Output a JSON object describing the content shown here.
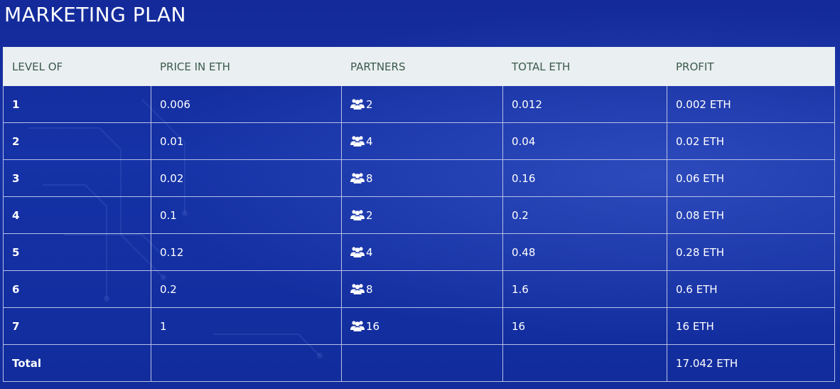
{
  "page": {
    "title": "MARKETING PLAN"
  },
  "table": {
    "headers": [
      "LEVEL OF",
      "PRICE IN ETH",
      "PARTNERS",
      "TOTAL ETH",
      "PROFIT"
    ],
    "rows": [
      {
        "level": "1",
        "price": "0.006",
        "partners": "2",
        "total": "0.012",
        "profit": "0.002 ETH"
      },
      {
        "level": "2",
        "price": "0.01",
        "partners": "4",
        "total": "0.04",
        "profit": "0.02 ETH"
      },
      {
        "level": "3",
        "price": "0.02",
        "partners": "8",
        "total": "0.16",
        "profit": "0.06 ETH"
      },
      {
        "level": "4",
        "price": "0.1",
        "partners": "2",
        "total": "0.2",
        "profit": "0.08 ETH"
      },
      {
        "level": "5",
        "price": "0.12",
        "partners": "4",
        "total": "0.48",
        "profit": "0.28 ETH"
      },
      {
        "level": "6",
        "price": "0.2",
        "partners": "8",
        "total": "1.6",
        "profit": "0.6 ETH"
      },
      {
        "level": "7",
        "price": "1",
        "partners": "16",
        "total": "16",
        "profit": "16 ETH"
      }
    ],
    "footer": {
      "label": "Total",
      "profit": "17.042 ETH"
    }
  },
  "icons": {
    "partners": "users-icon"
  },
  "colors": {
    "background": "#1532a6",
    "header_background": "#eaeff1",
    "header_text": "#3c5a4c",
    "cell_border": "#b6c0e8",
    "text": "#ffffff"
  }
}
